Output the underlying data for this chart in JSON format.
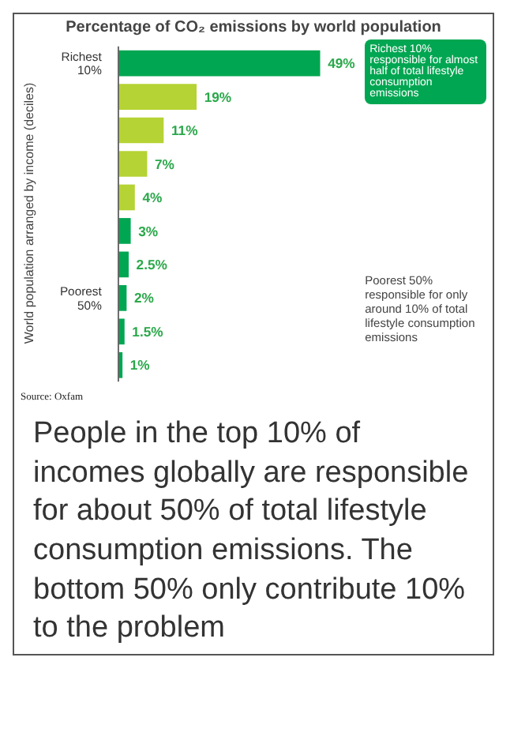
{
  "chart_data": {
    "type": "bar",
    "orientation": "horizontal",
    "title": "Percentage of CO₂ emissions by world population",
    "ylabel": "World population arranged by income (deciles)",
    "categories": [
      "Richest 10%",
      null,
      null,
      null,
      null,
      null,
      null,
      "Poorest 50%",
      null,
      null
    ],
    "values": [
      49,
      19,
      11,
      7,
      4,
      3,
      2.5,
      2,
      1.5,
      1
    ],
    "value_labels": [
      "49%",
      "19%",
      "11%",
      "7%",
      "4%",
      "3%",
      "2.5%",
      "2%",
      "1.5%",
      "1%"
    ],
    "colors": [
      "#00a651",
      "#b5d334",
      "#b5d334",
      "#b5d334",
      "#b5d334",
      "#00a651",
      "#00a651",
      "#00a651",
      "#00a651",
      "#00a651"
    ],
    "annotations": [
      "Richest 10% responsible for almost half of total lifestyle consumption emissions",
      "Poorest 50% responsible for only around 10% of total lifestyle consumption emissions",
      "Source: Oxfam",
      "People in the top 10% of incomes globally are responsible for about 50% of total lifestyle consumption emissions. The bottom 50% only contribute 10% to the problem"
    ]
  }
}
